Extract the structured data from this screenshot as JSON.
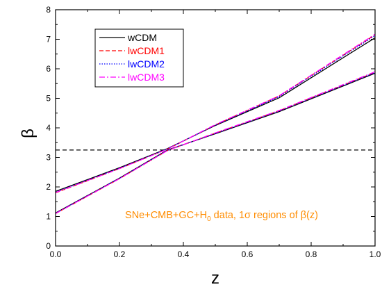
{
  "chart_data": {
    "type": "line",
    "xlabel": "z",
    "ylabel": "β",
    "xlim": [
      0.0,
      1.0
    ],
    "ylim": [
      0,
      8
    ],
    "xticks": [
      "0.0",
      "0.2",
      "0.4",
      "0.6",
      "0.8",
      "1.0"
    ],
    "yticks": [
      "0",
      "1",
      "2",
      "3",
      "4",
      "5",
      "6",
      "7",
      "8"
    ],
    "grid": false,
    "legend_position": "top-left",
    "annotation": {
      "prefix": "SNe+CMB+GC+H",
      "subscript": "0",
      "suffix": " data, 1σ regions of β(z)"
    },
    "reference_line": {
      "y": 3.25,
      "style": "dashed",
      "color": "#000000"
    },
    "series": [
      {
        "name": "wCDM",
        "color": "#000000",
        "dash": "solid",
        "upper": {
          "x": [
            0.0,
            0.2,
            0.35,
            0.5,
            0.7,
            1.0
          ],
          "y": [
            1.85,
            2.65,
            3.3,
            4.08,
            5.02,
            7.05
          ]
        },
        "lower": {
          "x": [
            0.0,
            0.2,
            0.35,
            0.5,
            0.7,
            1.0
          ],
          "y": [
            1.12,
            2.3,
            3.25,
            3.8,
            4.55,
            5.85
          ]
        }
      },
      {
        "name": "lwCDM1",
        "color": "#ff0000",
        "dash": "6,3",
        "upper": {
          "x": [
            0.0,
            0.2,
            0.35,
            0.5,
            0.7,
            1.0
          ],
          "y": [
            1.8,
            2.62,
            3.28,
            4.1,
            5.08,
            7.15
          ]
        },
        "lower": {
          "x": [
            0.0,
            0.2,
            0.35,
            0.5,
            0.7,
            1.0
          ],
          "y": [
            1.1,
            2.28,
            3.23,
            3.82,
            4.58,
            5.88
          ]
        }
      },
      {
        "name": "lwCDM2",
        "color": "#0000ff",
        "dash": "1.5,2",
        "upper": {
          "x": [
            0.0,
            0.2,
            0.35,
            0.5,
            0.7,
            1.0
          ],
          "y": [
            1.82,
            2.63,
            3.29,
            4.09,
            5.06,
            7.12
          ]
        },
        "lower": {
          "x": [
            0.0,
            0.2,
            0.35,
            0.5,
            0.7,
            1.0
          ],
          "y": [
            1.11,
            2.29,
            3.24,
            3.81,
            4.57,
            5.87
          ]
        }
      },
      {
        "name": "lwCDM3",
        "color": "#ff00ff",
        "dash": "8,3,2,3",
        "upper": {
          "x": [
            0.0,
            0.2,
            0.35,
            0.5,
            0.7,
            1.0
          ],
          "y": [
            1.81,
            2.62,
            3.28,
            4.11,
            5.09,
            7.17
          ]
        },
        "lower": {
          "x": [
            0.0,
            0.2,
            0.35,
            0.5,
            0.7,
            1.0
          ],
          "y": [
            1.1,
            2.28,
            3.23,
            3.83,
            4.59,
            5.9
          ]
        }
      }
    ],
    "annotation_color": "#ff8c00"
  }
}
